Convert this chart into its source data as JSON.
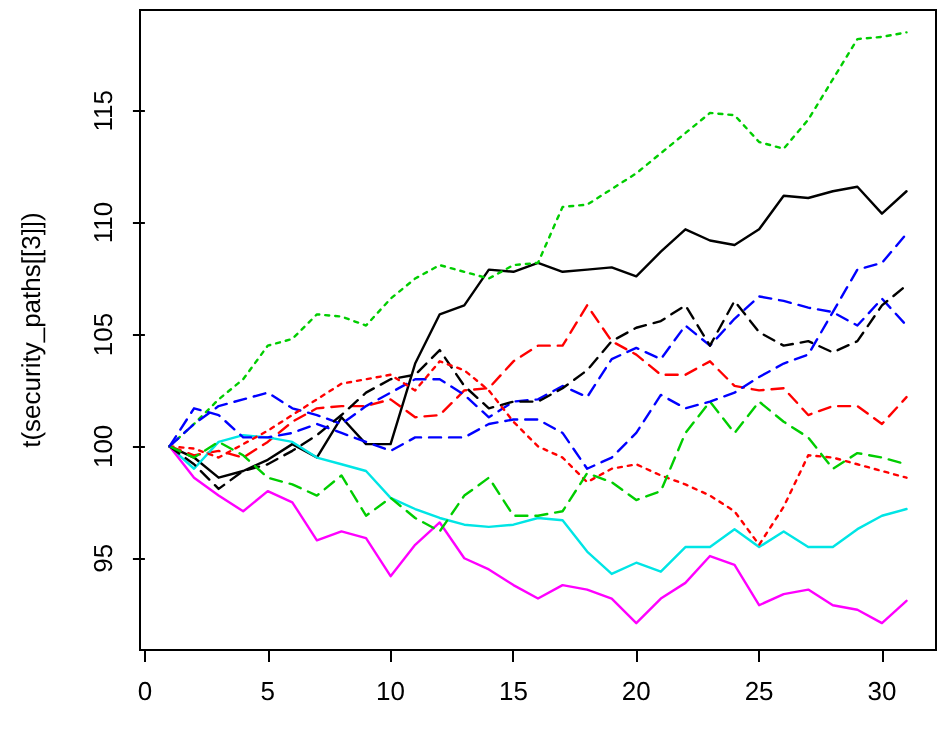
{
  "chart_data": {
    "type": "line",
    "ylabel": "t(security_paths[[3]])",
    "x": [
      1,
      2,
      3,
      4,
      5,
      6,
      7,
      8,
      9,
      10,
      11,
      12,
      13,
      14,
      15,
      16,
      17,
      18,
      19,
      20,
      21,
      22,
      23,
      24,
      25,
      26,
      27,
      28,
      29,
      30,
      31
    ],
    "xlim": [
      -0.2,
      32.2
    ],
    "xticks": [
      0,
      5,
      10,
      15,
      20,
      25,
      30
    ],
    "ylim": [
      90.9,
      119.5
    ],
    "yticks": [
      95,
      100,
      105,
      110,
      115
    ],
    "grid": false,
    "marker": "none",
    "series": [
      {
        "color": "#000000",
        "line_style": "solid",
        "values": [
          100,
          99.5,
          98.6,
          98.9,
          99.4,
          100.1,
          99.5,
          101.3,
          100.1,
          100.1,
          103.7,
          105.9,
          106.3,
          107.9,
          107.8,
          108.2,
          107.8,
          107.9,
          108,
          107.6,
          108.7,
          109.7,
          109.2,
          109,
          109.7,
          111.2,
          111.1,
          111.4,
          111.6,
          110.4,
          111.4
        ]
      },
      {
        "color": "#ff0000",
        "line_style": "dashed",
        "values": [
          100,
          99.6,
          99.8,
          99.5,
          100.2,
          101.1,
          101.7,
          101.8,
          101.8,
          102.1,
          101.3,
          101.4,
          102.5,
          102.6,
          103.8,
          104.5,
          104.5,
          106.3,
          104.7,
          104.1,
          103.2,
          103.2,
          103.8,
          102.7,
          102.5,
          102.6,
          101.4,
          101.8,
          101.8,
          101,
          102.2
        ]
      },
      {
        "color": "#00cd00",
        "line_style": "dotted",
        "values": [
          100,
          101,
          102.1,
          103,
          104.5,
          104.8,
          105.9,
          105.8,
          105.4,
          106.6,
          107.5,
          108.1,
          107.8,
          107.5,
          108.1,
          108.2,
          110.7,
          110.8,
          111.5,
          112.2,
          113.1,
          114,
          114.9,
          114.8,
          113.6,
          113.3,
          114.6,
          116.4,
          118.2,
          118.3,
          118.5
        ]
      },
      {
        "color": "#0000ff",
        "line_style": "dashed",
        "values": [
          100,
          101,
          101.8,
          102.1,
          102.4,
          101.7,
          101.4,
          101,
          101.8,
          102.4,
          103,
          103,
          102.3,
          101.3,
          102,
          102.1,
          102.7,
          102.2,
          103.9,
          104.4,
          103.9,
          105.4,
          104.5,
          105.7,
          106.7,
          106.5,
          106.2,
          106,
          105.4,
          106.6,
          105.4
        ]
      },
      {
        "color": "#00e5e5",
        "line_style": "solid",
        "values": [
          100,
          99,
          100.2,
          100.5,
          100.4,
          100.2,
          99.5,
          99.2,
          98.9,
          97.7,
          97.2,
          96.8,
          96.5,
          96.4,
          96.5,
          96.8,
          96.7,
          95.3,
          94.3,
          94.8,
          94.4,
          95.5,
          95.5,
          96.3,
          95.5,
          96.2,
          95.5,
          95.5,
          96.3,
          96.9,
          97.2
        ]
      },
      {
        "color": "#ff00ff",
        "line_style": "solid",
        "values": [
          100,
          98.6,
          97.8,
          97.1,
          98,
          97.5,
          95.8,
          96.2,
          95.9,
          94.2,
          95.6,
          96.6,
          95,
          94.5,
          93.8,
          93.2,
          93.8,
          93.6,
          93.2,
          92.1,
          93.2,
          93.9,
          95.1,
          94.7,
          92.9,
          93.4,
          93.6,
          92.9,
          92.7,
          92.1,
          93.1
        ]
      },
      {
        "color": "#000000",
        "line_style": "dashed",
        "values": [
          100,
          99.2,
          98.1,
          98.9,
          99.2,
          99.8,
          100.5,
          101.4,
          102.4,
          103,
          103.2,
          104.3,
          102.7,
          101.7,
          102,
          102,
          102.6,
          103.4,
          104.7,
          105.3,
          105.6,
          106.3,
          104.5,
          106.5,
          105.1,
          104.5,
          104.7,
          104.2,
          104.7,
          106.3,
          107.2
        ]
      },
      {
        "color": "#ff0000",
        "line_style": "dotted",
        "values": [
          100,
          99.9,
          99.5,
          100.1,
          100.7,
          101.4,
          102.1,
          102.8,
          103,
          103.2,
          102.5,
          103.8,
          103.4,
          102.5,
          101.1,
          100,
          99.5,
          98.4,
          99,
          99.2,
          98.7,
          98.3,
          97.8,
          97.1,
          95.6,
          97.3,
          99.6,
          99.5,
          99.2,
          98.9,
          98.6
        ]
      },
      {
        "color": "#00cd00",
        "line_style": "dashed",
        "values": [
          100,
          99.5,
          100.2,
          99.6,
          98.6,
          98.3,
          97.8,
          98.7,
          96.9,
          97.7,
          96.8,
          96.2,
          97.8,
          98.6,
          96.9,
          96.9,
          97.1,
          98.8,
          98.4,
          97.6,
          98,
          100.6,
          102,
          100.6,
          102,
          101.1,
          100.4,
          99,
          99.7,
          99.5,
          99.2
        ]
      },
      {
        "color": "#0000ff",
        "line_style": "dashed",
        "values": [
          100,
          101.7,
          101.4,
          100.4,
          100.4,
          100.6,
          101,
          100.6,
          100.2,
          99.8,
          100.4,
          100.4,
          100.4,
          101,
          101.2,
          101.2,
          100.6,
          99,
          99.5,
          100.6,
          102.3,
          101.7,
          102,
          102.4,
          103.1,
          103.7,
          104.1,
          106,
          107.9,
          108.2,
          109.5
        ]
      }
    ]
  }
}
